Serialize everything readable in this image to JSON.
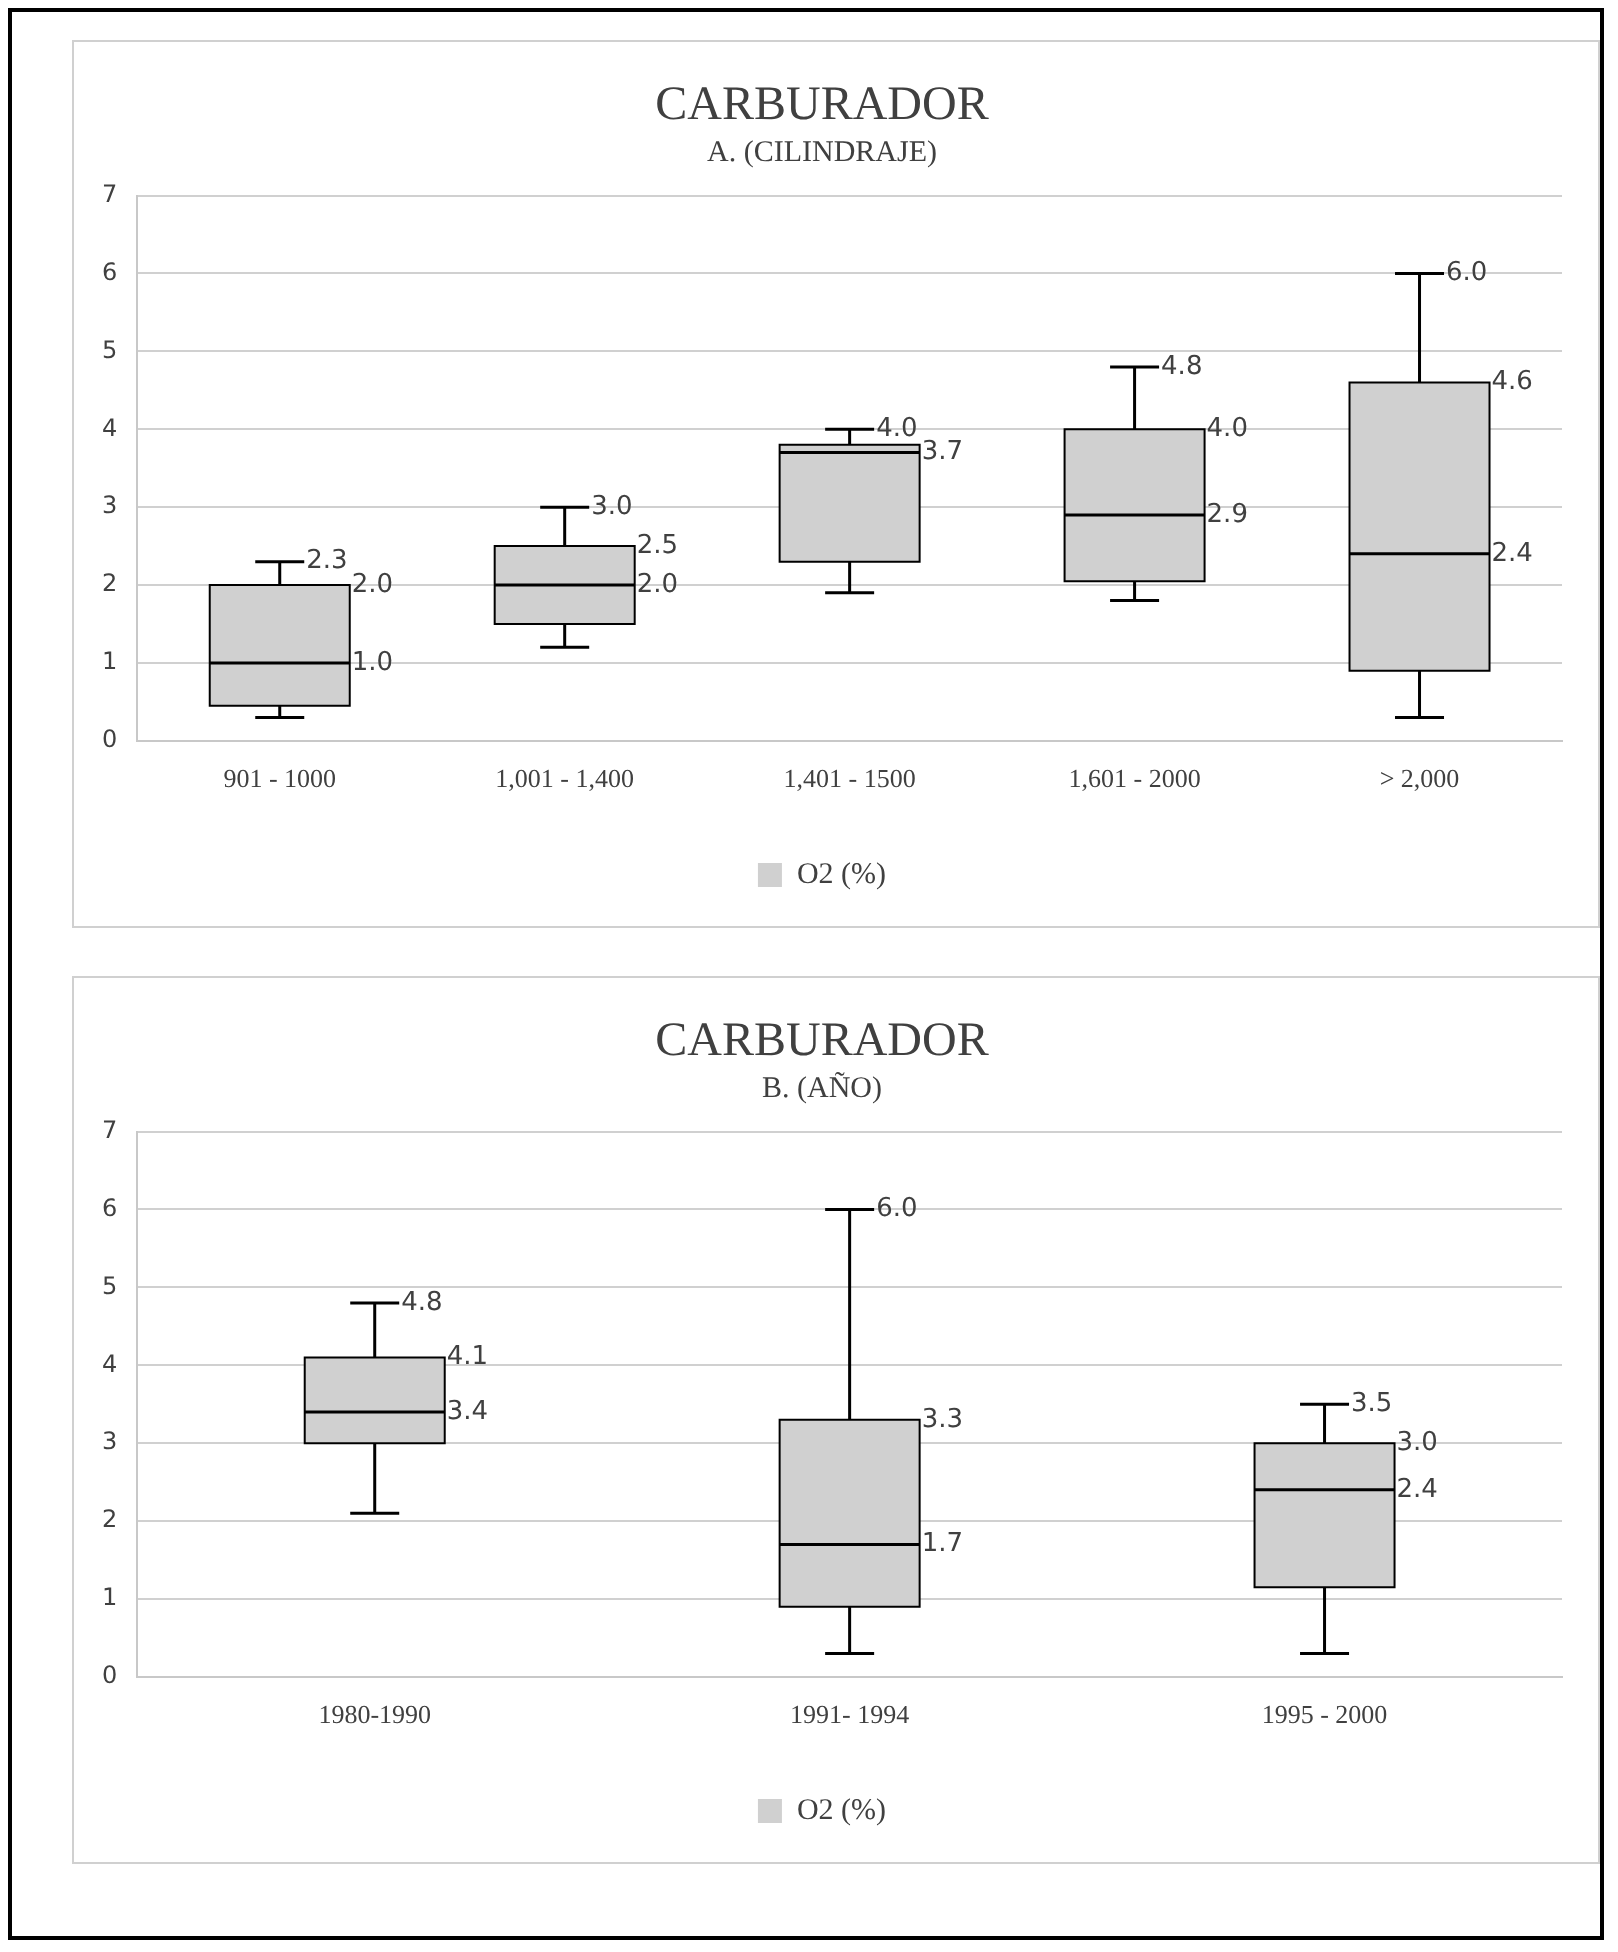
{
  "chart_data": [
    {
      "type": "box",
      "title": "CARBURADOR",
      "subtitle": "A. (CILINDRAJE)",
      "categories": [
        "901 - 1000",
        "1,001 - 1,400",
        "1,401 - 1500",
        "1,601 - 2000",
        "> 2,000"
      ],
      "series": [
        {
          "name": "O2 (%)",
          "color": "#d0d0d0",
          "boxes": [
            {
              "low": 0.3,
              "q1": 0.45,
              "median": 1.0,
              "q3": 2.0,
              "high": 2.3
            },
            {
              "low": 1.2,
              "q1": 1.5,
              "median": 2.0,
              "q3": 2.5,
              "high": 3.0
            },
            {
              "low": 1.9,
              "q1": 2.3,
              "median": 3.7,
              "q3": 3.8,
              "high": 4.0
            },
            {
              "low": 1.8,
              "q1": 2.05,
              "median": 2.9,
              "q3": 4.0,
              "high": 4.8
            },
            {
              "low": 0.3,
              "q1": 0.9,
              "median": 2.4,
              "q3": 4.6,
              "high": 6.0
            }
          ]
        }
      ],
      "ylim": [
        0,
        7
      ],
      "yticks": [
        0,
        1,
        2,
        3,
        4,
        5,
        6,
        7
      ],
      "grid": "y",
      "legend": "bottom",
      "annotations": [
        {
          "text": "2.3",
          "x": "901 - 1000",
          "y": 2.3
        },
        {
          "text": "2.0",
          "x": "901 - 1000",
          "y": 2.0
        },
        {
          "text": "1.0",
          "x": "901 - 1000",
          "y": 1.0
        },
        {
          "text": "3.0",
          "x": "1,001 - 1,400",
          "y": 3.0
        },
        {
          "text": "2.5",
          "x": "1,001 - 1,400",
          "y": 2.5
        },
        {
          "text": "2.0",
          "x": "1,001 - 1,400",
          "y": 2.0
        },
        {
          "text": "4.0",
          "x": "1,401 - 1500",
          "y": 4.0
        },
        {
          "text": "3.7",
          "x": "1,401 - 1500",
          "y": 3.7
        },
        {
          "text": "4.8",
          "x": "1,601 - 2000",
          "y": 4.8
        },
        {
          "text": "4.0",
          "x": "1,601 - 2000",
          "y": 4.0
        },
        {
          "text": "2.9",
          "x": "1,601 - 2000",
          "y": 2.9
        },
        {
          "text": "6.0",
          "x": "> 2,000",
          "y": 6.0
        },
        {
          "text": "4.6",
          "x": "> 2,000",
          "y": 4.6
        },
        {
          "text": "2.4",
          "x": "> 2,000",
          "y": 2.4
        }
      ]
    },
    {
      "type": "box",
      "title": "CARBURADOR",
      "subtitle": "B. (AÑO)",
      "categories": [
        "1980-1990",
        "1991- 1994",
        "1995 - 2000"
      ],
      "series": [
        {
          "name": "O2 (%)",
          "color": "#d0d0d0",
          "boxes": [
            {
              "low": 2.1,
              "q1": 3.0,
              "median": 3.4,
              "q3": 4.1,
              "high": 4.8
            },
            {
              "low": 0.3,
              "q1": 0.9,
              "median": 1.7,
              "q3": 3.3,
              "high": 6.0
            },
            {
              "low": 0.3,
              "q1": 1.15,
              "median": 2.4,
              "q3": 3.0,
              "high": 3.5
            }
          ]
        }
      ],
      "ylim": [
        0,
        7
      ],
      "yticks": [
        0,
        1,
        2,
        3,
        4,
        5,
        6,
        7
      ],
      "grid": "y",
      "legend": "bottom",
      "annotations": [
        {
          "text": "4.8",
          "x": "1980-1990",
          "y": 4.8
        },
        {
          "text": "4.1",
          "x": "1980-1990",
          "y": 4.1
        },
        {
          "text": "3.4",
          "x": "1980-1990",
          "y": 3.4
        },
        {
          "text": "6.0",
          "x": "1991- 1994",
          "y": 6.0
        },
        {
          "text": "3.3",
          "x": "1991- 1994",
          "y": 3.3
        },
        {
          "text": "1.7",
          "x": "1991- 1994",
          "y": 1.7
        },
        {
          "text": "3.5",
          "x": "1995 - 2000",
          "y": 3.5
        },
        {
          "text": "3.0",
          "x": "1995 - 2000",
          "y": 3.0
        },
        {
          "text": "2.4",
          "x": "1995 - 2000",
          "y": 2.4
        }
      ]
    }
  ]
}
